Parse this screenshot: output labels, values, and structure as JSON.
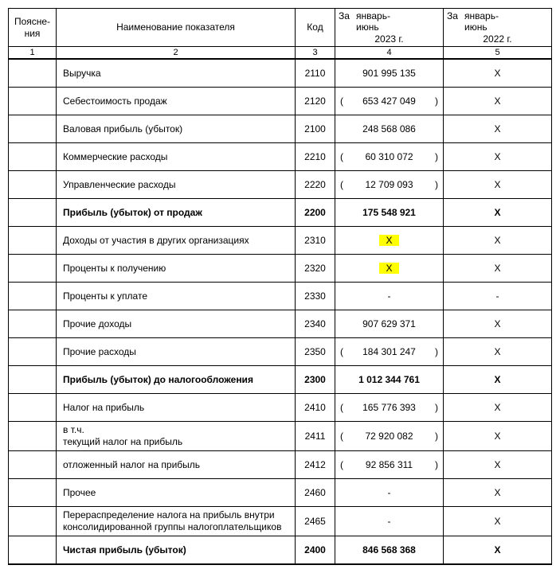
{
  "header": {
    "explain": "Поясне-\nния",
    "name": "Наименование показателя",
    "code": "Код",
    "period_prefix": "За",
    "period_cur_range": "январь-\nиюнь",
    "period_cur_year": "2023 г.",
    "period_prev_range": "январь-\nиюнь",
    "period_prev_year": "2022 г.",
    "colnums": [
      "1",
      "2",
      "3",
      "4",
      "5"
    ]
  },
  "rows": [
    {
      "name": "Выручка",
      "code": "2110",
      "cur": "901 995 135",
      "prev": "X"
    },
    {
      "name": "Себестоимость продаж",
      "code": "2120",
      "cur": "653 427 049",
      "cur_paren": true,
      "prev": "X"
    },
    {
      "name": "Валовая прибыль (убыток)",
      "code": "2100",
      "cur": "248 568 086",
      "prev": "X"
    },
    {
      "name": "Коммерческие расходы",
      "code": "2210",
      "cur": "60 310 072",
      "cur_paren": true,
      "prev": "X"
    },
    {
      "name": "Управленческие расходы",
      "code": "2220",
      "cur": "12 709 093",
      "cur_paren": true,
      "prev": "X"
    },
    {
      "name": "Прибыль (убыток) от продаж",
      "code": "2200",
      "cur": "175 548 921",
      "prev": "X",
      "bold": true
    },
    {
      "name": "Доходы от участия в других организациях",
      "code": "2310",
      "cur": "X",
      "cur_hl": true,
      "prev": "X"
    },
    {
      "name": "Проценты к получению",
      "code": "2320",
      "cur": "X",
      "cur_hl": true,
      "prev": "X"
    },
    {
      "name": "Проценты к уплате",
      "code": "2330",
      "cur": "-",
      "prev": "-"
    },
    {
      "name": "Прочие доходы",
      "code": "2340",
      "cur": "907 629 371",
      "prev": "X"
    },
    {
      "name": "Прочие расходы",
      "code": "2350",
      "cur": "184 301 247",
      "cur_paren": true,
      "prev": "X"
    },
    {
      "name": "Прибыль (убыток) до налогообложения",
      "code": "2300",
      "cur": "1 012 344 761",
      "prev": "X",
      "bold": true
    },
    {
      "name": "Налог на прибыль",
      "code": "2410",
      "cur": "165 776 393",
      "cur_paren": true,
      "prev": "X"
    },
    {
      "name": " в т.ч.\nтекущий налог на прибыль",
      "code": "2411",
      "cur": "72 920 082",
      "cur_paren": true,
      "prev": "X"
    },
    {
      "name": "отложенный налог на прибыль",
      "code": "2412",
      "cur": "92 856 311",
      "cur_paren": true,
      "prev": "X"
    },
    {
      "name": "Прочее",
      "code": "2460",
      "cur": "-",
      "prev": "X"
    },
    {
      "name": "Перераспределение налога на прибыль внутри консолидированной группы налогоплательщиков",
      "code": "2465",
      "cur": "-",
      "prev": "X"
    },
    {
      "name": "Чистая прибыль (убыток)",
      "code": "2400",
      "cur": "846 568 368",
      "prev": "X",
      "bold": true
    }
  ],
  "style": {
    "highlight_color": "#ffff00",
    "border_color": "#000000",
    "font_size_body": 12,
    "font_size_header": 12
  }
}
